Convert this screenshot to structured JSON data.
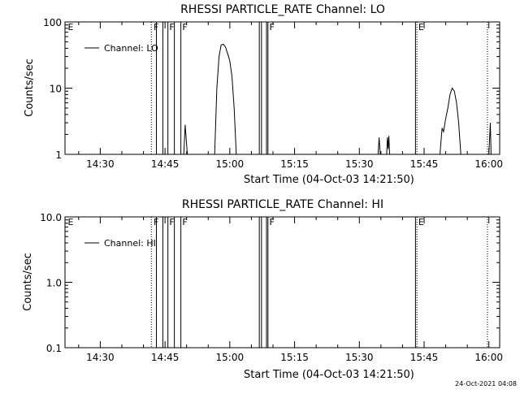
{
  "chart_data": [
    {
      "type": "line",
      "title": "RHESSI PARTICLE_RATE Channel: LO",
      "xlabel": "Start Time (04-Oct-03 14:21:50)",
      "ylabel": "Counts/sec",
      "y_scale": "log",
      "ylim": [
        1,
        100
      ],
      "y_ticks": [
        1,
        10,
        100
      ],
      "y_tick_labels": [
        "1",
        "10",
        "100"
      ],
      "xlim": [
        "14:21:50",
        "16:02:30"
      ],
      "x_ticks": [
        "14:30",
        "14:45",
        "15:00",
        "15:15",
        "15:30",
        "15:45",
        "16:00"
      ],
      "grid": false,
      "legend_position": "top-left",
      "series": [
        {
          "name": "Channel: LO",
          "points": [
            [
              "14:56:30",
              1
            ],
            [
              "14:57:00",
              10
            ],
            [
              "14:57:30",
              30
            ],
            [
              "14:58:00",
              45
            ],
            [
              "14:58:30",
              46
            ],
            [
              "14:59:00",
              42
            ],
            [
              "14:59:30",
              33
            ],
            [
              "15:00:00",
              26
            ],
            [
              "15:00:30",
              15
            ],
            [
              "15:01:00",
              5
            ],
            [
              "15:01:30",
              1
            ]
          ]
        }
      ],
      "extra_traces": [
        [
          [
            "14:49:20",
            1
          ],
          [
            "14:49:40",
            2.8
          ],
          [
            "14:50:00",
            1.4
          ],
          [
            "14:50:10",
            1
          ]
        ],
        [
          [
            "15:34:20",
            1
          ],
          [
            "15:34:35",
            1.8
          ],
          [
            "15:34:50",
            1
          ]
        ],
        [
          [
            "15:36:20",
            1
          ],
          [
            "15:36:30",
            1.8
          ],
          [
            "15:36:40",
            1.2
          ],
          [
            "15:36:50",
            1.9
          ],
          [
            "15:37:00",
            1
          ]
        ],
        [
          [
            "15:48:40",
            1
          ],
          [
            "15:49:10",
            2.5
          ],
          [
            "15:49:30",
            2.2
          ],
          [
            "15:50:00",
            3.5
          ],
          [
            "15:50:30",
            5
          ],
          [
            "15:51:00",
            8
          ],
          [
            "15:51:30",
            10
          ],
          [
            "15:52:00",
            9
          ],
          [
            "15:52:30",
            6
          ],
          [
            "15:53:00",
            3
          ],
          [
            "15:53:30",
            1
          ]
        ],
        [
          [
            "16:00:00",
            1
          ],
          [
            "16:00:20",
            3
          ],
          [
            "16:00:30",
            1
          ]
        ]
      ],
      "dotted_lines": [
        "14:41:50",
        "15:43:20",
        "15:59:40"
      ],
      "solid_lines": [
        "14:43:00",
        "14:44:30",
        "14:45:40",
        "14:47:10",
        "14:48:40",
        "15:06:50",
        "15:07:20",
        "15:08:30",
        "15:08:50",
        "15:43:00"
      ],
      "flags": [
        {
          "text": "E",
          "at": "14:22:30"
        },
        {
          "text": "F",
          "at": "14:42:20"
        },
        {
          "text": "F",
          "at": "14:46:00"
        },
        {
          "text": "F",
          "at": "14:49:00"
        },
        {
          "text": "F",
          "at": "15:09:10"
        },
        {
          "text": "E",
          "at": "15:43:40"
        }
      ]
    },
    {
      "type": "line",
      "title": "RHESSI PARTICLE_RATE Channel: HI",
      "xlabel": "Start Time (04-Oct-03 14:21:50)",
      "ylabel": "Counts/sec",
      "y_scale": "log",
      "ylim": [
        0.1,
        10
      ],
      "y_ticks": [
        0.1,
        1,
        10
      ],
      "y_tick_labels": [
        "0.1",
        "1.0",
        "10.0"
      ],
      "xlim": [
        "14:21:50",
        "16:02:30"
      ],
      "x_ticks": [
        "14:30",
        "14:45",
        "15:00",
        "15:15",
        "15:30",
        "15:45",
        "16:00"
      ],
      "grid": false,
      "legend_position": "top-left",
      "series": [
        {
          "name": "Channel: HI",
          "points": []
        }
      ],
      "extra_traces": [],
      "dotted_lines": [
        "14:41:50",
        "15:43:20",
        "15:59:40"
      ],
      "solid_lines": [
        "14:43:00",
        "14:44:30",
        "14:45:40",
        "14:47:10",
        "14:48:40",
        "15:06:50",
        "15:07:20",
        "15:08:30",
        "15:08:50",
        "15:43:00"
      ],
      "flags": [
        {
          "text": "E",
          "at": "14:22:30"
        },
        {
          "text": "F",
          "at": "14:42:20"
        },
        {
          "text": "F",
          "at": "14:46:00"
        },
        {
          "text": "F",
          "at": "14:49:00"
        },
        {
          "text": "F",
          "at": "15:09:10"
        },
        {
          "text": "E",
          "at": "15:43:40"
        }
      ]
    }
  ],
  "footer": {
    "timestamp": "24-Oct-2021 04:08"
  }
}
